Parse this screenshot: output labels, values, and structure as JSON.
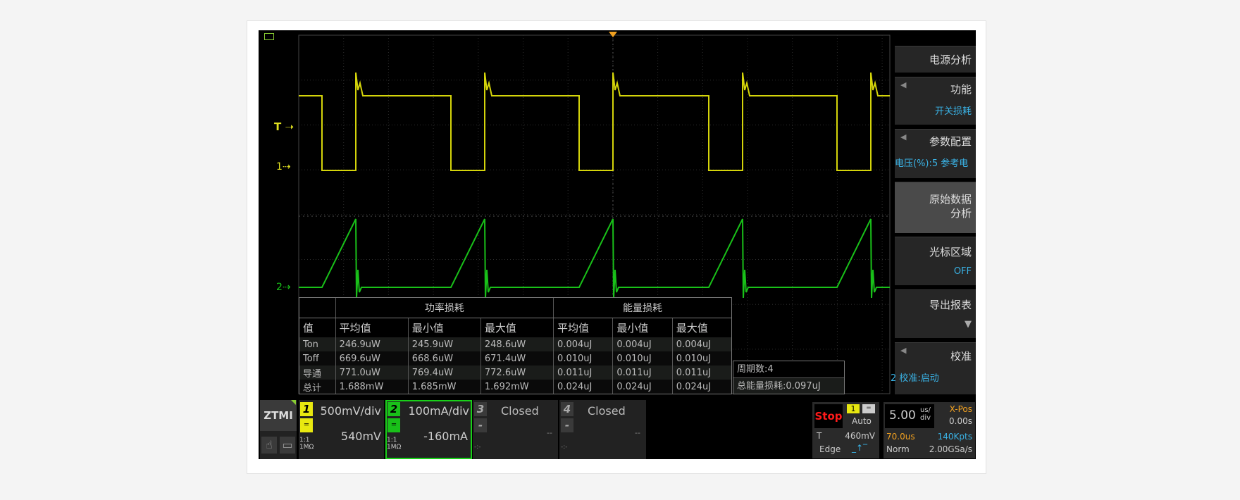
{
  "markers": {
    "trigger": "T",
    "ch1": "1",
    "ch2": "2"
  },
  "colors": {
    "ch1": "#d4d40a",
    "ch2": "#19c019",
    "accent_blue": "#3ab3e6",
    "stop": "#ff1a1a",
    "orange": "#f0a020"
  },
  "table": {
    "groups": [
      "功率损耗",
      "能量损耗"
    ],
    "headers": [
      "值",
      "平均值",
      "最小值",
      "最大值",
      "平均值",
      "最小值",
      "最大值"
    ],
    "rows": [
      [
        "Ton",
        "246.9uW",
        "245.9uW",
        "248.6uW",
        "0.004uJ",
        "0.004uJ",
        "0.004uJ"
      ],
      [
        "Toff",
        "669.6uW",
        "668.6uW",
        "671.4uW",
        "0.010uJ",
        "0.010uJ",
        "0.010uJ"
      ],
      [
        "导通",
        "771.0uW",
        "769.4uW",
        "772.6uW",
        "0.011uJ",
        "0.011uJ",
        "0.011uJ"
      ],
      [
        "总计",
        "1.688mW",
        "1.685mW",
        "1.692mW",
        "0.024uJ",
        "0.024uJ",
        "0.024uJ"
      ]
    ]
  },
  "cycles": {
    "count": "周期数:4",
    "total": "总能量损耗:0.097uJ"
  },
  "menu": {
    "title": "电源分析",
    "function": {
      "label": "功能",
      "value": "开关损耗"
    },
    "params": {
      "label": "参数配置",
      "value": "电压(%):5  参考电"
    },
    "raw": {
      "line1": "原始数据",
      "line2": "分析"
    },
    "cursor": {
      "label": "光标区域",
      "value": "OFF"
    },
    "export": {
      "label": "导出报表"
    },
    "calib": {
      "label": "校准",
      "value": "2  校准:启动"
    }
  },
  "bottom": {
    "logo": "ZTMI",
    "ch1": {
      "num": "1",
      "scale": "500mV/div",
      "offset": "540mV",
      "probe": "1:1",
      "imp": "1MΩ"
    },
    "ch2": {
      "num": "2",
      "scale": "100mA/div",
      "offset": "-160mA",
      "probe": "1:1",
      "imp": "1MΩ"
    },
    "ch3": {
      "num": "3",
      "state": "Closed",
      "offset": "--",
      "probe": "-:-"
    },
    "ch4": {
      "num": "4",
      "state": "Closed",
      "offset": "--",
      "probe": "-:-"
    },
    "trigger": {
      "status": "Stop",
      "source": "1",
      "mode": "Auto",
      "label": "T",
      "level": "460mV",
      "type": "Edge"
    },
    "timebase": {
      "value": "5.00",
      "unit_top": "us/",
      "unit_bot": "div",
      "xpos_label": "X-Pos",
      "xpos": "0.00s",
      "delay": "70.0us",
      "depth": "140Kpts",
      "acq": "Norm",
      "rate": "2.00GSa/s"
    }
  }
}
